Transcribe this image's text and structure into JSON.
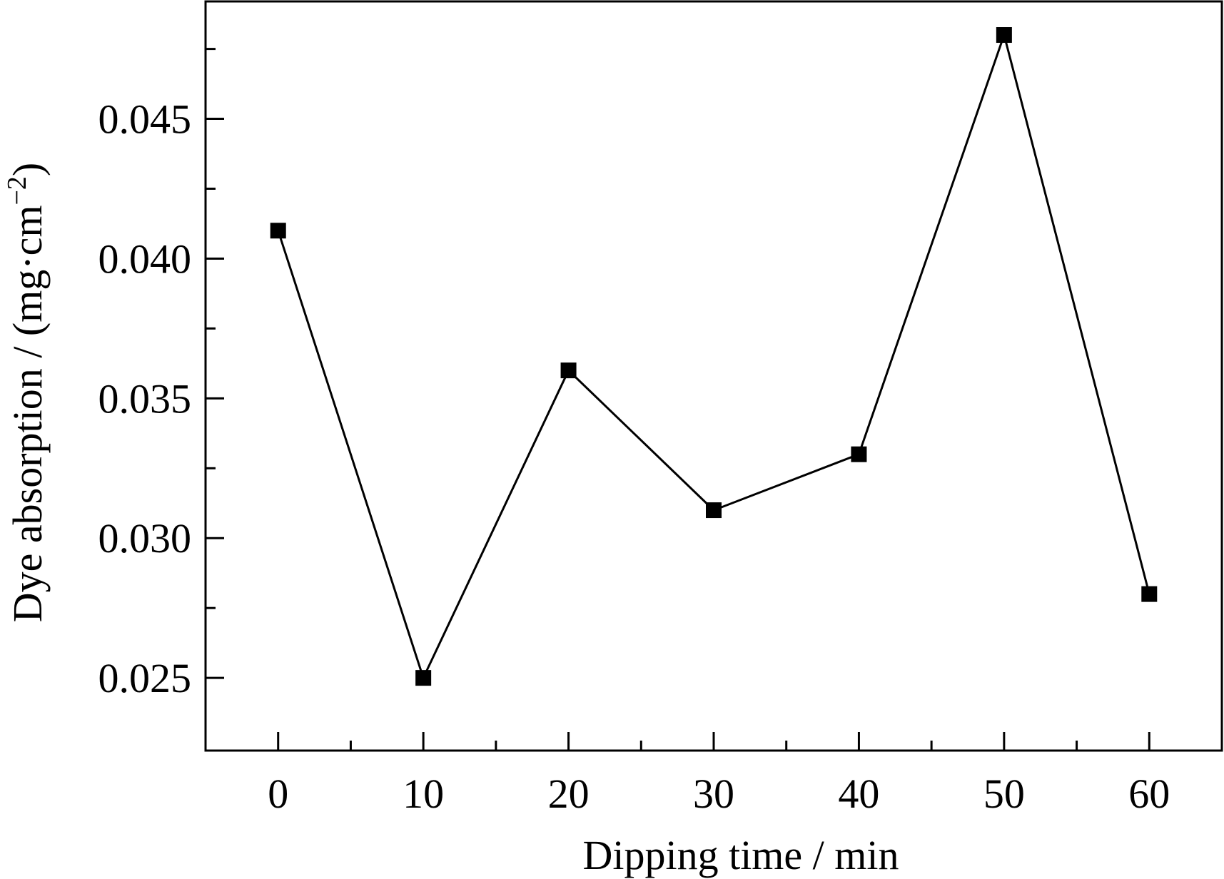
{
  "chart_data": {
    "type": "line",
    "xlabel": "Dipping time / min",
    "ylabel_main": "Dye absorption / (mg·cm",
    "ylabel_sup": "−2",
    "ylabel_close": ")",
    "xlim": [
      -5,
      65
    ],
    "ylim": [
      0.0224,
      0.0492
    ],
    "x_ticks_major": [
      0,
      10,
      20,
      30,
      40,
      50,
      60
    ],
    "x_tick_labels": [
      "0",
      "10",
      "20",
      "30",
      "40",
      "50",
      "60"
    ],
    "x_ticks_minor": [
      5,
      15,
      25,
      35,
      45,
      55
    ],
    "y_ticks_major": [
      0.025,
      0.03,
      0.035,
      0.04,
      0.045
    ],
    "y_tick_labels": [
      "0.025",
      "0.030",
      "0.035",
      "0.040",
      "0.045"
    ],
    "y_ticks_minor": [
      0.0275,
      0.0325,
      0.0375,
      0.0425,
      0.0475
    ],
    "grid": false,
    "legend": "none",
    "series": [
      {
        "marker": "filled-square",
        "color": "#000000",
        "x": [
          0,
          10,
          20,
          30,
          40,
          50,
          60
        ],
        "y": [
          0.041,
          0.025,
          0.036,
          0.031,
          0.033,
          0.048,
          0.028
        ]
      }
    ]
  }
}
